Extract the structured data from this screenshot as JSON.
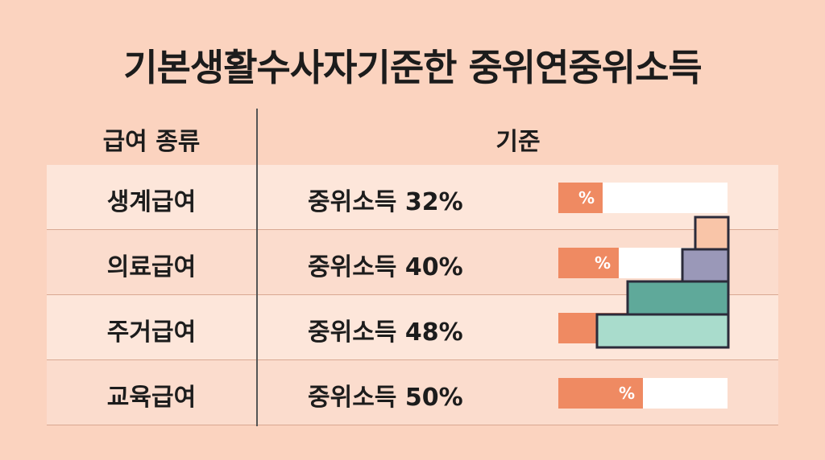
{
  "header": {
    "title": "기본생활수사자기준한 중위연중위소득"
  },
  "table": {
    "columns": [
      "급여 종류",
      "기준"
    ],
    "rows": [
      {
        "type": "생계급여",
        "criterion": "중위소득 32%",
        "bar_label": "%"
      },
      {
        "type": "의료급여",
        "criterion": "중위소득 40%",
        "bar_label": "%"
      },
      {
        "type": "주거급여",
        "criterion": "중위소득 48%",
        "bar_label": "%"
      },
      {
        "type": "교육급여",
        "criterion": "중위소득 50%",
        "bar_label": "%"
      }
    ]
  }
}
